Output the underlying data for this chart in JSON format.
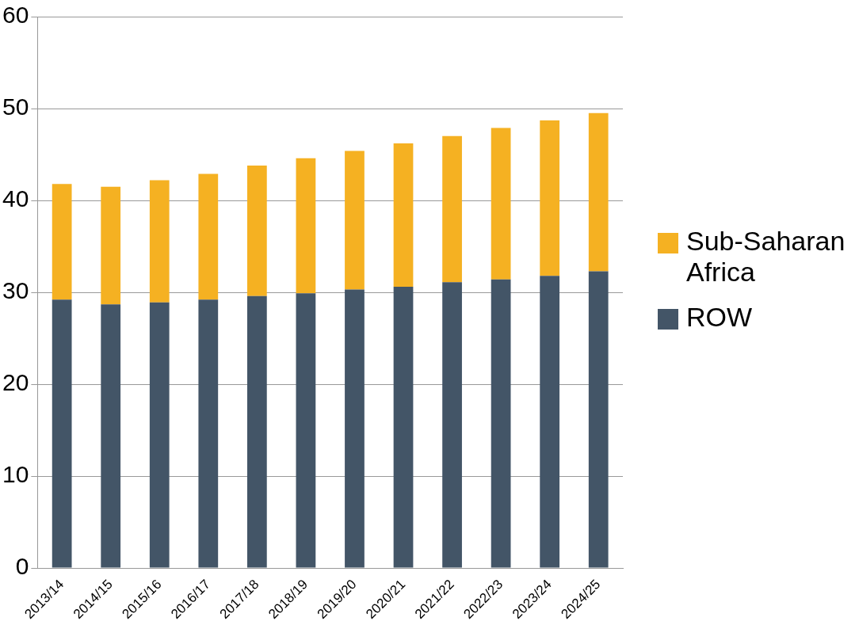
{
  "chart_data": {
    "type": "bar",
    "stacked": true,
    "categories": [
      "2013/14",
      "2014/15",
      "2015/16",
      "2016/17",
      "2017/18",
      "2018/19",
      "2019/20",
      "2020/21",
      "2021/22",
      "2022/23",
      "2023/24",
      "2024/25"
    ],
    "series": [
      {
        "name": "ROW",
        "color": "#435567",
        "values": [
          29.2,
          28.7,
          28.9,
          29.2,
          29.6,
          29.9,
          30.3,
          30.6,
          31.1,
          31.4,
          31.8,
          32.3
        ]
      },
      {
        "name": "Sub-Saharan Africa",
        "color": "#f5b122",
        "values": [
          12.6,
          12.8,
          13.3,
          13.7,
          14.2,
          14.7,
          15.1,
          15.6,
          15.9,
          16.5,
          16.9,
          17.2
        ]
      }
    ],
    "ylim": [
      0,
      60
    ],
    "yticks": [
      0,
      10,
      20,
      30,
      40,
      50,
      60
    ],
    "grid": "y",
    "legend": "right"
  }
}
